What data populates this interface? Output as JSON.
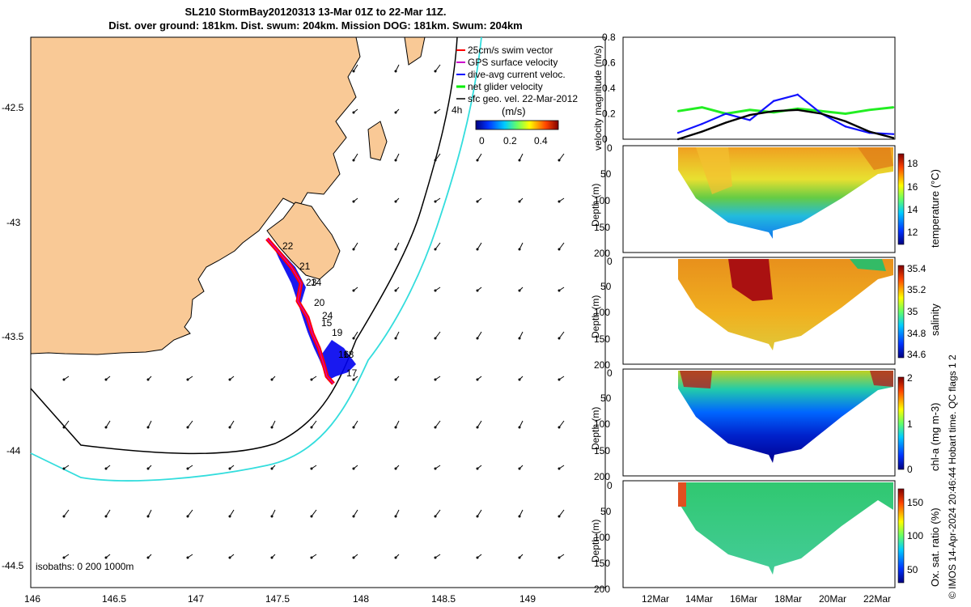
{
  "title": {
    "line1": "SL210 StormBay20120313 13-Mar 01Z to 22-Mar 11Z.",
    "line2": "Dist. over ground: 181km. Dist. swum: 204km. Mission DOG: 181km. Swum: 204km"
  },
  "legend": {
    "items": [
      {
        "label": "25cm/s swim vector",
        "color": "#ff0000"
      },
      {
        "label": "GPS surface velocity",
        "color": "#cc00cc"
      },
      {
        "label": "dive-avg current veloc.",
        "color": "#0000ff"
      },
      {
        "label": "net glider velocity",
        "color": "#00ee00"
      },
      {
        "label": "sfc geo. vel. 22-Mar-2012",
        "color": "#000000"
      }
    ],
    "hours_label": "4h",
    "colorbar_title": "(m/s)",
    "colorbar_ticks": [
      "0",
      "0.2",
      "0.4"
    ]
  },
  "map": {
    "x_ticks": [
      "146",
      "146.5",
      "147",
      "147.5",
      "148",
      "148.5",
      "149"
    ],
    "y_ticks": [
      "-42.5",
      "-43",
      "-43.5",
      "-44",
      "-44.5"
    ],
    "isobaths_label": "isobaths: 0   200  1000m",
    "day_labels": [
      "22",
      "21",
      "23",
      "14",
      "20",
      "24",
      "15",
      "19",
      "16",
      "18",
      "17"
    ],
    "colors": {
      "land": "#f9c996",
      "track": "#ff0000",
      "vector_area": "#0000ee",
      "isobath_200": "#000000",
      "isobath_1000": "#33dddd"
    }
  },
  "panels": {
    "velocity_ylabel": "velocity magnitude (m/s)",
    "depth_label": "Depth (m)",
    "time_ticks": [
      "12Mar",
      "14Mar",
      "16Mar",
      "18Mar",
      "20Mar",
      "22Mar"
    ],
    "temperature": {
      "label": "temperature (°C)",
      "ticks": [
        "18",
        "16",
        "14",
        "12"
      ]
    },
    "salinity": {
      "label": "salinity",
      "ticks": [
        "35.4",
        "35.2",
        "35",
        "34.8",
        "34.6"
      ]
    },
    "chla": {
      "label": "chl-a (mg m-3)",
      "ticks": [
        "2",
        "1",
        "0"
      ]
    },
    "oxygen": {
      "label": "Ox. sat. ratio (%)",
      "ticks": [
        "150",
        "100",
        "50"
      ]
    }
  },
  "side_note": "© IMOS 14-Apr-2024 20:46:44 Hobart time. QC flags 1  2",
  "chart_data": {
    "type": "line",
    "title": "velocity magnitude (m/s)",
    "x": [
      "13Mar",
      "14Mar",
      "15Mar",
      "16Mar",
      "17Mar",
      "18Mar",
      "19Mar",
      "20Mar",
      "21Mar",
      "22Mar"
    ],
    "ylim": [
      0,
      0.8
    ],
    "y_ticks": [
      "0",
      "0.2",
      "0.4",
      "0.6",
      "0.8"
    ],
    "series": [
      {
        "name": "net glider velocity",
        "values": [
          0.22,
          0.25,
          0.2,
          0.23,
          0.21,
          0.24,
          0.22,
          0.2,
          0.23,
          0.25
        ]
      },
      {
        "name": "dive-avg current veloc.",
        "values": [
          0.05,
          0.12,
          0.2,
          0.15,
          0.3,
          0.35,
          0.2,
          0.1,
          0.05,
          0.04
        ]
      },
      {
        "name": "sfc geo. vel.",
        "values": [
          0.0,
          0.06,
          0.13,
          0.19,
          0.22,
          0.23,
          0.2,
          0.14,
          0.06,
          0.01
        ]
      }
    ]
  }
}
